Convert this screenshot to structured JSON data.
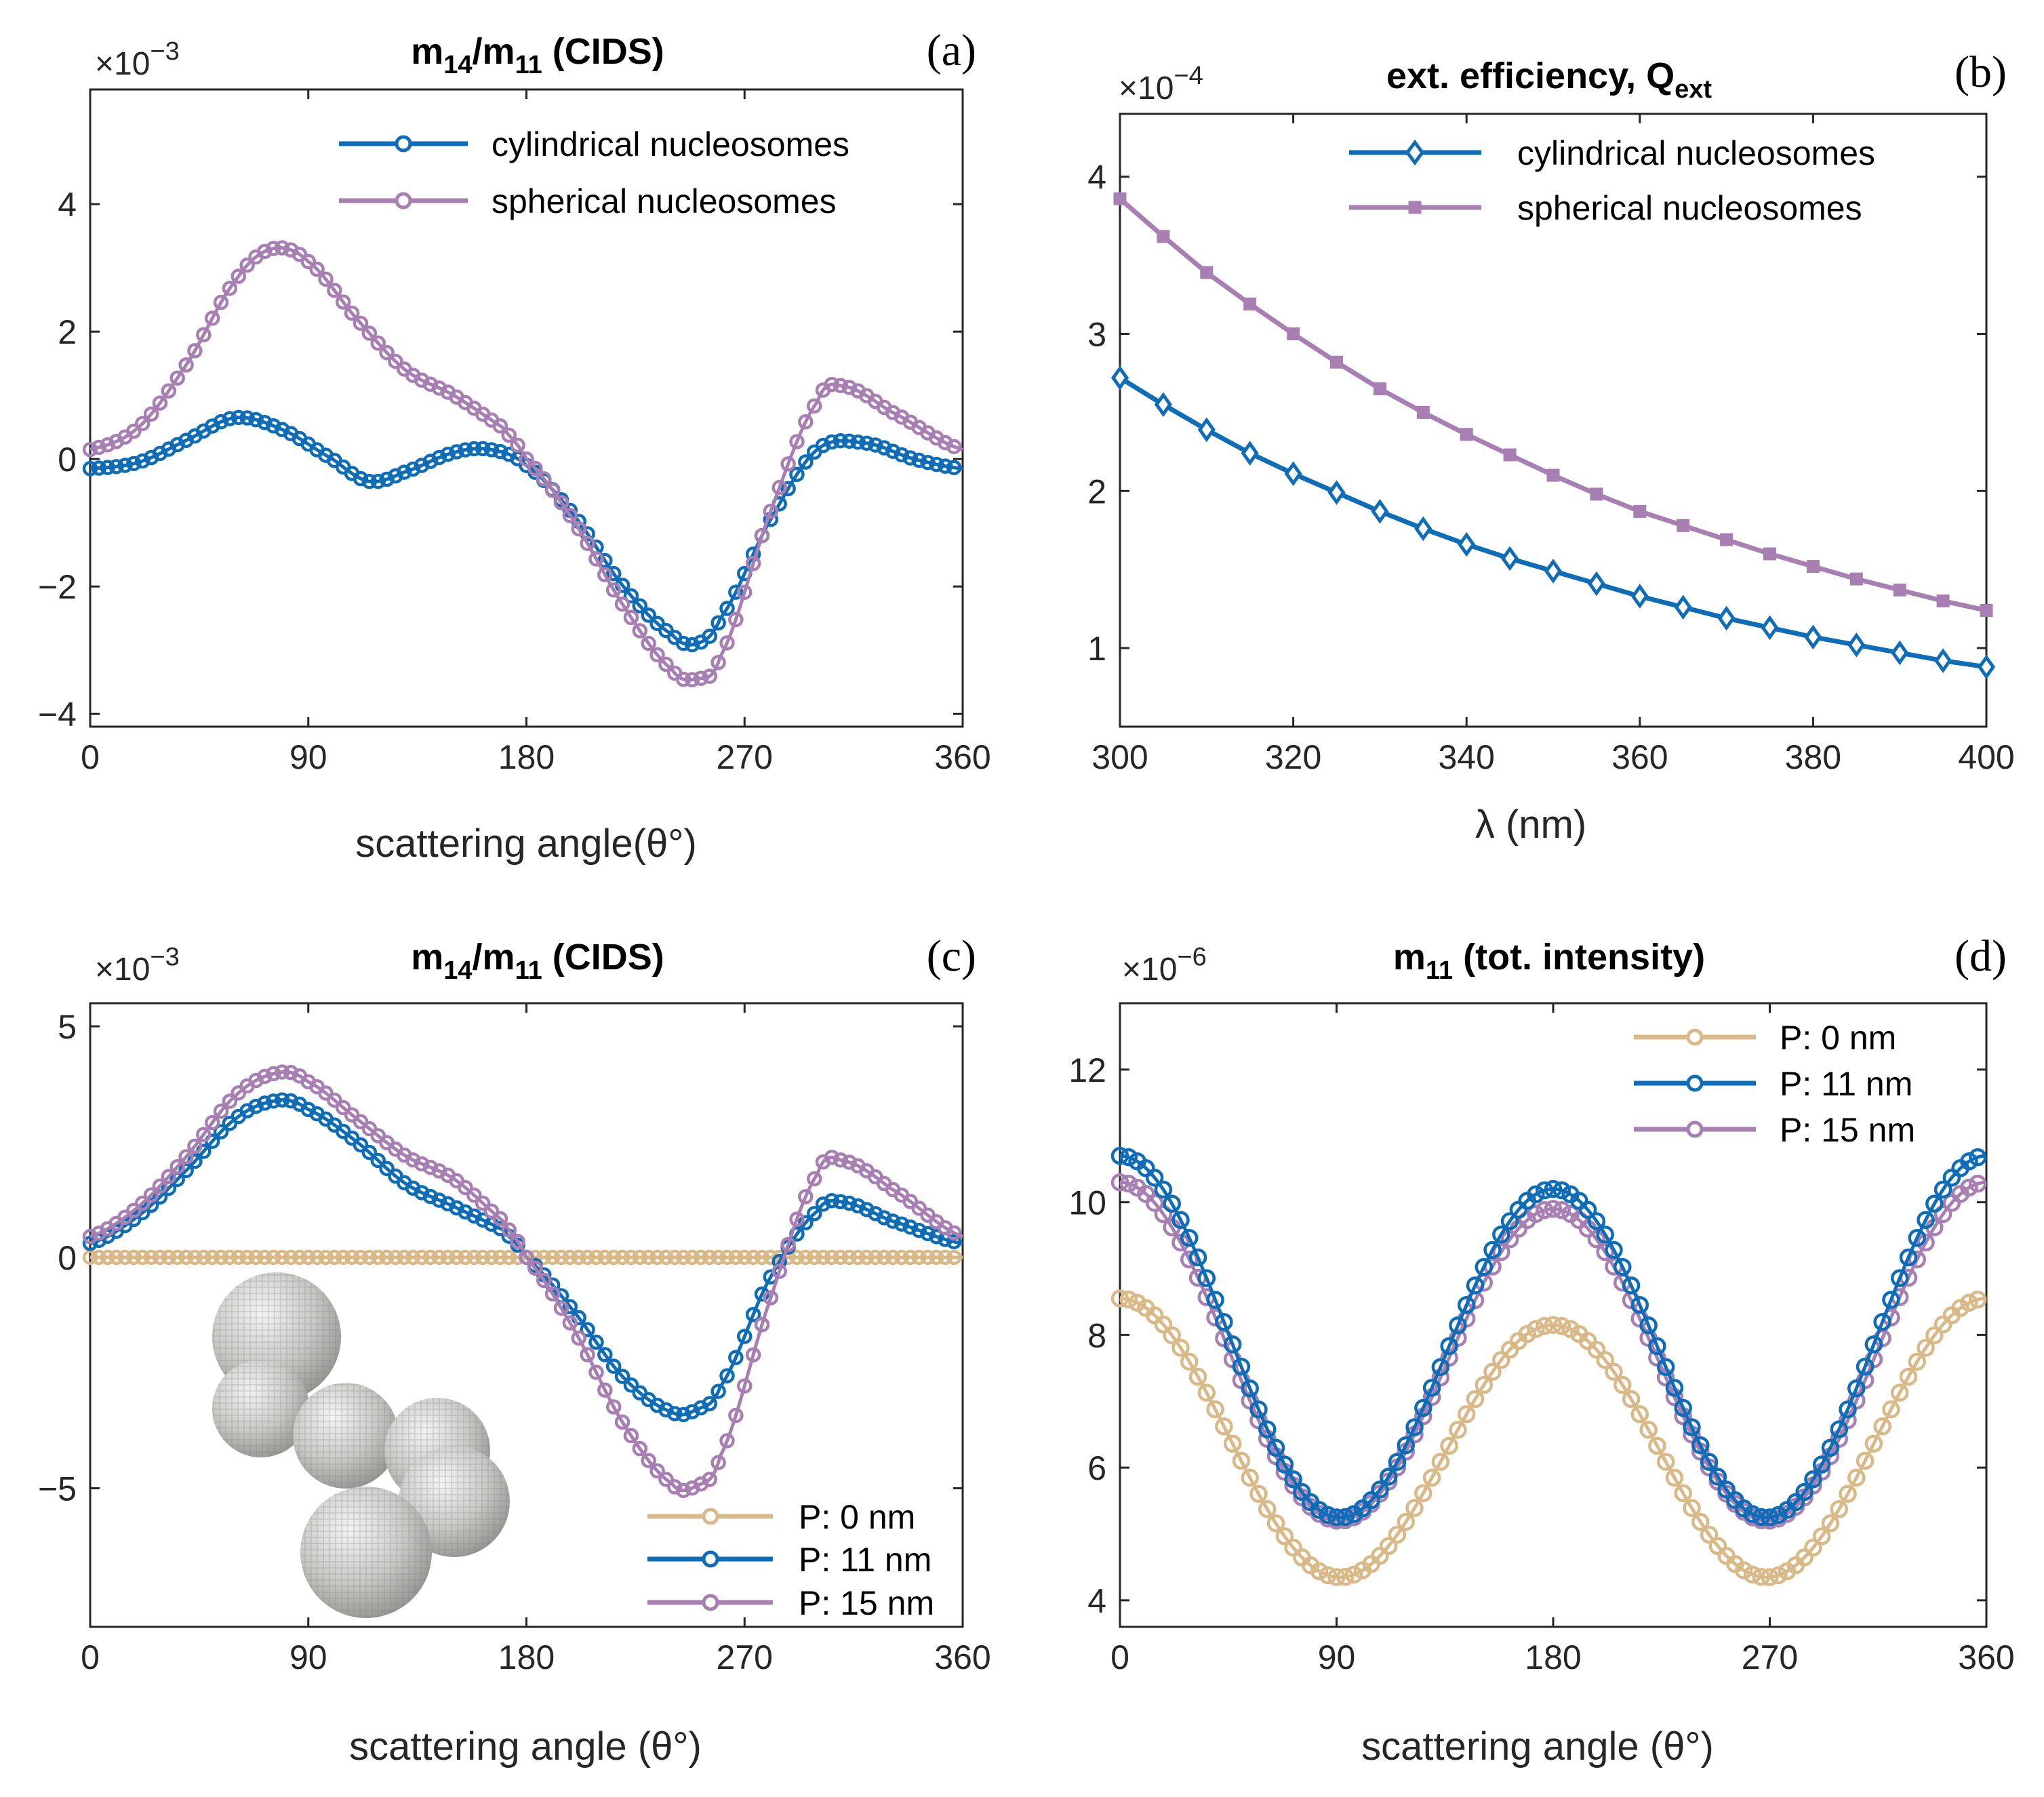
{
  "colors": {
    "blue": "#0f6db8",
    "purple": "#a87fb3",
    "tan": "#d9b987",
    "axis": "#262626"
  },
  "chart_data": [
    {
      "id": "a",
      "type": "scatter-line",
      "panel_label": "(a)",
      "title": {
        "main": "m",
        "sub1": "14",
        "slash": "/m",
        "sub2": "11",
        "rest": " (CIDS)"
      },
      "exponent": {
        "base": "×10",
        "power": "−3"
      },
      "xlabel": "scattering angle(θ°)",
      "xlim": [
        0,
        360
      ],
      "ylim": [
        -4.2,
        5.8
      ],
      "xticks": [
        0,
        90,
        180,
        270,
        360
      ],
      "xtick_labels": [
        "0",
        "90",
        "180",
        "270",
        "360"
      ],
      "yticks": [
        -4,
        -2,
        0,
        2,
        4
      ],
      "ytick_labels": [
        "−4",
        "−2",
        "0",
        "2",
        "4"
      ],
      "legend_position": "top-right",
      "series": [
        {
          "name": "cylindrical nucleosomes",
          "color": "#0f6db8",
          "marker": "circle",
          "x": [
            0,
            20,
            40,
            60,
            80,
            100,
            115,
            130,
            150,
            165,
            180,
            200,
            220,
            240,
            250,
            260,
            280,
            300,
            320,
            340,
            360
          ],
          "y": [
            -0.15,
            -0.05,
            0.3,
            0.65,
            0.45,
            0.0,
            -0.35,
            -0.2,
            0.1,
            0.15,
            -0.1,
            -0.9,
            -2.0,
            -2.75,
            -2.9,
            -2.5,
            -1.0,
            0.15,
            0.25,
            0.0,
            -0.15
          ]
        },
        {
          "name": "spherical nucleosomes",
          "color": "#a87fb3",
          "marker": "circle",
          "x": [
            0,
            20,
            40,
            60,
            75,
            90,
            110,
            130,
            150,
            170,
            180,
            200,
            220,
            240,
            250,
            260,
            280,
            300,
            310,
            330,
            360
          ],
          "y": [
            0.15,
            0.5,
            1.5,
            2.8,
            3.3,
            3.1,
            2.2,
            1.4,
            1.0,
            0.5,
            0.0,
            -1.0,
            -2.3,
            -3.3,
            -3.45,
            -3.1,
            -0.9,
            0.9,
            1.15,
            0.75,
            0.15
          ]
        }
      ]
    },
    {
      "id": "b",
      "type": "line",
      "panel_label": "(b)",
      "title": {
        "main": "ext. efficiency, Q",
        "sub1": "ext"
      },
      "exponent": {
        "base": "×10",
        "power": "−4"
      },
      "xlabel": "λ (nm)",
      "xlim": [
        300,
        400
      ],
      "ylim": [
        0.5,
        4.4
      ],
      "xticks": [
        300,
        320,
        340,
        360,
        380,
        400
      ],
      "xtick_labels": [
        "300",
        "320",
        "340",
        "360",
        "380",
        "400"
      ],
      "yticks": [
        1,
        2,
        3,
        4
      ],
      "ytick_labels": [
        "1",
        "2",
        "3",
        "4"
      ],
      "legend_position": "top-right",
      "series": [
        {
          "name": "cylindrical nucleosomes",
          "color": "#0f6db8",
          "marker": "diamond",
          "x": [
            300,
            305,
            310,
            315,
            320,
            325,
            330,
            335,
            340,
            345,
            350,
            355,
            360,
            365,
            370,
            375,
            380,
            385,
            390,
            395,
            400
          ],
          "y": [
            2.72,
            2.55,
            2.39,
            2.24,
            2.11,
            1.99,
            1.87,
            1.76,
            1.66,
            1.57,
            1.49,
            1.41,
            1.33,
            1.26,
            1.19,
            1.13,
            1.07,
            1.02,
            0.97,
            0.92,
            0.88
          ]
        },
        {
          "name": "spherical nucleosomes",
          "color": "#a87fb3",
          "marker": "square",
          "x": [
            300,
            305,
            310,
            315,
            320,
            325,
            330,
            335,
            340,
            345,
            350,
            355,
            360,
            365,
            370,
            375,
            380,
            385,
            390,
            395,
            400
          ],
          "y": [
            3.86,
            3.62,
            3.39,
            3.19,
            3.0,
            2.82,
            2.65,
            2.5,
            2.36,
            2.23,
            2.1,
            1.98,
            1.87,
            1.78,
            1.69,
            1.6,
            1.52,
            1.44,
            1.37,
            1.3,
            1.24
          ]
        }
      ]
    },
    {
      "id": "c",
      "type": "scatter-line",
      "panel_label": "(c)",
      "title": {
        "main": "m",
        "sub1": "14",
        "slash": "/m",
        "sub2": "11",
        "rest": " (CIDS)"
      },
      "exponent": {
        "base": "×10",
        "power": "−3"
      },
      "xlabel": "scattering angle (θ°)",
      "xlim": [
        0,
        360
      ],
      "ylim": [
        -8,
        5.5
      ],
      "xticks": [
        0,
        90,
        180,
        270,
        360
      ],
      "xtick_labels": [
        "0",
        "90",
        "180",
        "270",
        "360"
      ],
      "yticks": [
        -5,
        0,
        5
      ],
      "ytick_labels": [
        "−5",
        "0",
        "5"
      ],
      "legend_position": "bottom-right",
      "inset": "rendered chromatin fiber of spherical nucleosomes",
      "series": [
        {
          "name": "P: 0 nm",
          "color": "#d9b987",
          "marker": "circle",
          "x": [
            0,
            360
          ],
          "y": [
            0,
            0
          ]
        },
        {
          "name": "P: 11 nm",
          "color": "#0f6db8",
          "marker": "circle",
          "x": [
            0,
            20,
            40,
            60,
            78,
            90,
            110,
            130,
            150,
            170,
            180,
            200,
            220,
            240,
            250,
            260,
            280,
            300,
            310,
            330,
            360
          ],
          "y": [
            0.3,
            0.9,
            1.9,
            3.0,
            3.4,
            3.2,
            2.5,
            1.6,
            1.1,
            0.6,
            0.0,
            -1.2,
            -2.6,
            -3.35,
            -3.3,
            -2.8,
            -0.5,
            1.0,
            1.2,
            0.8,
            0.3
          ]
        },
        {
          "name": "P: 15 nm",
          "color": "#a87fb3",
          "marker": "circle",
          "x": [
            0,
            20,
            40,
            60,
            78,
            90,
            110,
            130,
            150,
            170,
            180,
            200,
            220,
            240,
            250,
            260,
            280,
            300,
            310,
            330,
            360
          ],
          "y": [
            0.45,
            1.1,
            2.2,
            3.5,
            4.0,
            3.8,
            3.0,
            2.2,
            1.7,
            0.8,
            0.0,
            -1.6,
            -3.6,
            -4.9,
            -4.95,
            -4.3,
            -1.0,
            1.8,
            2.1,
            1.5,
            0.45
          ]
        }
      ]
    },
    {
      "id": "d",
      "type": "scatter-line",
      "panel_label": "(d)",
      "title": {
        "main": "m",
        "sub1": "11",
        "rest": " (tot. intensity)"
      },
      "exponent": {
        "base": "×10",
        "power": "−6"
      },
      "xlabel": "scattering angle (θ°)",
      "xlim": [
        0,
        360
      ],
      "ylim": [
        3.6,
        13
      ],
      "xticks": [
        0,
        90,
        180,
        270,
        360
      ],
      "xtick_labels": [
        "0",
        "90",
        "180",
        "270",
        "360"
      ],
      "yticks": [
        4,
        6,
        8,
        10,
        12
      ],
      "ytick_labels": [
        "4",
        "6",
        "8",
        "10",
        "12"
      ],
      "legend_position": "top-right",
      "series": [
        {
          "name": "P: 0 nm",
          "color": "#d9b987",
          "marker": "circle",
          "model": {
            "c": 6.35,
            "a1": 0.2,
            "a2": 2.0
          }
        },
        {
          "name": "P: 11 nm",
          "color": "#0f6db8",
          "marker": "circle",
          "model": {
            "c": 7.85,
            "a1": 0.25,
            "a2": 2.6
          }
        },
        {
          "name": "P: 15 nm",
          "color": "#a87fb3",
          "marker": "circle",
          "model": {
            "c": 7.65,
            "a1": 0.2,
            "a2": 2.45
          }
        }
      ]
    }
  ]
}
